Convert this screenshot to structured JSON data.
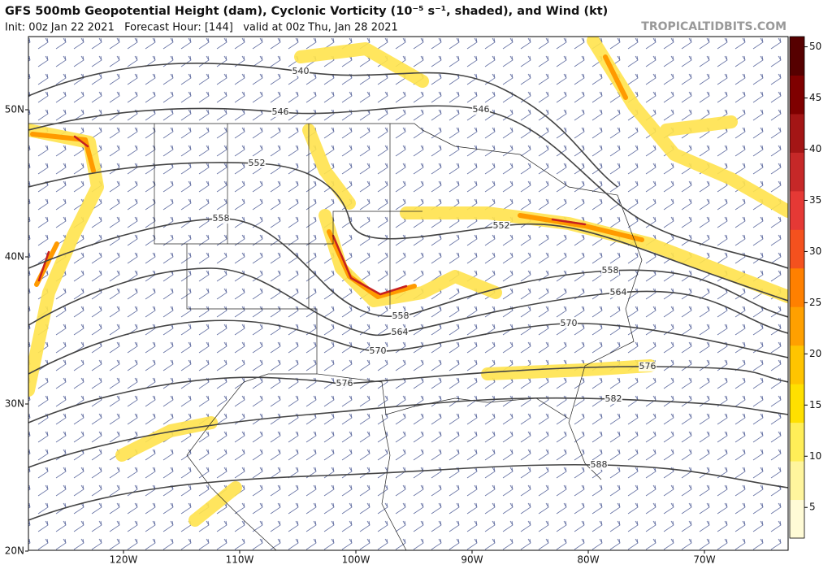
{
  "header": {
    "title": "GFS 500mb Geopotential Height (dam), Cyclonic Vorticity (10⁻⁵ s⁻¹, shaded), and Wind (kt)",
    "subtitle": "Init: 00z Jan 22 2021   Forecast Hour: [144]   valid at 00z Thu, Jan 28 2021",
    "watermark": "TROPICALTIDBITS.COM"
  },
  "map": {
    "latitudes": [
      {
        "value": 50,
        "label": "50N"
      },
      {
        "value": 40,
        "label": "40N"
      },
      {
        "value": 30,
        "label": "30N"
      },
      {
        "value": 20,
        "label": "20N"
      }
    ],
    "longitudes": [
      {
        "value": -120,
        "label": "120W"
      },
      {
        "value": -110,
        "label": "110W"
      },
      {
        "value": -100,
        "label": "100W"
      },
      {
        "value": -90,
        "label": "90W"
      },
      {
        "value": -80,
        "label": "80W"
      },
      {
        "value": -70,
        "label": "70W"
      }
    ],
    "contour_labels": [
      540,
      546,
      546,
      552,
      552,
      558,
      558,
      558,
      564,
      564,
      570,
      570,
      576,
      576,
      582,
      588
    ]
  },
  "colorbar": {
    "range": [
      2,
      51
    ],
    "ticks": [
      5,
      10,
      15,
      20,
      25,
      30,
      35,
      40,
      45,
      50
    ],
    "colors": [
      "#fffbd6",
      "#fff59d",
      "#ffee58",
      "#ffe000",
      "#ffc400",
      "#ffa000",
      "#ff8000",
      "#f4511e",
      "#e53935",
      "#c62828",
      "#a31515",
      "#7f0000",
      "#560000"
    ]
  }
}
